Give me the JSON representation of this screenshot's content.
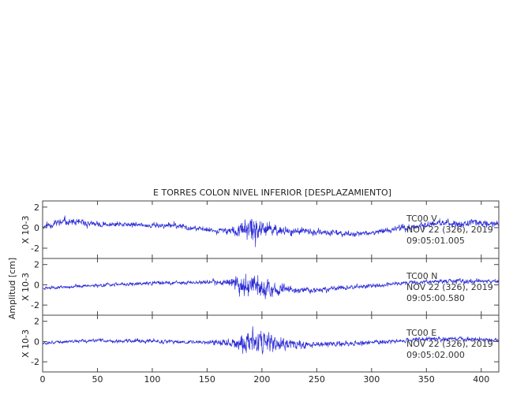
{
  "chart_data": {
    "type": "line",
    "title": "E TORRES COLON NIVEL INFERIOR [DESPLAZAMIENTO]",
    "ylabel": "Amplitud [cm]",
    "xlim": [
      0,
      416
    ],
    "x_ticks": [
      0,
      50,
      100,
      150,
      200,
      250,
      300,
      350,
      400
    ],
    "trace_color": "#2b2bd6",
    "panels": [
      {
        "name": "TC00 V",
        "scale_label": "X 10-3",
        "ylim": [
          -3,
          2.6
        ],
        "y_ticks": [
          2,
          0,
          -2
        ],
        "annotation": [
          "TC00   V",
          "NOV 22 (326), 2019",
          "09:05:01.005"
        ],
        "envelope": {
          "t": [
            0,
            20,
            60,
            120,
            150,
            172,
            180,
            190,
            200,
            215,
            230,
            260,
            300,
            330,
            360,
            400,
            416
          ],
          "a": [
            0.55,
            0.8,
            0.5,
            0.55,
            0.45,
            0.7,
            1.6,
            2.6,
            1.8,
            1.0,
            0.7,
            0.6,
            0.45,
            0.6,
            0.65,
            0.7,
            0.55
          ]
        },
        "trend": {
          "t": [
            0,
            20,
            50,
            120,
            160,
            200,
            240,
            280,
            300,
            330,
            360,
            400,
            416
          ],
          "v": [
            0.1,
            0.6,
            0.3,
            0.2,
            -0.3,
            -0.2,
            -0.4,
            -0.6,
            -0.5,
            0.0,
            0.4,
            0.5,
            0.3
          ]
        },
        "seed": 11
      },
      {
        "name": "TC00 N",
        "scale_label": "X 10-3",
        "ylim": [
          -3,
          2.6
        ],
        "y_ticks": [
          2,
          0,
          -2
        ],
        "annotation": [
          "TC00   N",
          "NOV 22 (326), 2019",
          "09:05:00.580"
        ],
        "envelope": {
          "t": [
            0,
            40,
            100,
            150,
            172,
            180,
            190,
            200,
            215,
            240,
            280,
            320,
            360,
            400,
            416
          ],
          "a": [
            0.3,
            0.35,
            0.35,
            0.4,
            0.8,
            2.0,
            2.5,
            1.9,
            1.1,
            0.6,
            0.45,
            0.4,
            0.45,
            0.45,
            0.4
          ]
        },
        "trend": {
          "t": [
            0,
            60,
            120,
            170,
            200,
            230,
            260,
            300,
            330,
            370,
            416
          ],
          "v": [
            -0.3,
            0.0,
            0.2,
            0.3,
            -0.4,
            -0.6,
            -0.4,
            -0.1,
            0.2,
            0.4,
            0.3
          ]
        },
        "seed": 23
      },
      {
        "name": "TC00 E",
        "scale_label": "X 10-3",
        "ylim": [
          -3,
          2.6
        ],
        "y_ticks": [
          2,
          0,
          -2
        ],
        "annotation": [
          "TC00   E",
          "NOV 22 (326), 2019",
          "09:05:02.000"
        ],
        "envelope": {
          "t": [
            0,
            40,
            100,
            150,
            172,
            180,
            190,
            200,
            215,
            240,
            280,
            330,
            370,
            416
          ],
          "a": [
            0.3,
            0.35,
            0.4,
            0.4,
            0.8,
            1.8,
            2.6,
            2.2,
            1.4,
            0.7,
            0.45,
            0.4,
            0.45,
            0.4
          ]
        },
        "trend": {
          "t": [
            0,
            50,
            110,
            160,
            200,
            240,
            280,
            320,
            350,
            400,
            416
          ],
          "v": [
            -0.1,
            0.1,
            0.0,
            -0.1,
            -0.2,
            -0.3,
            -0.2,
            0.0,
            0.3,
            0.2,
            0.1
          ]
        },
        "seed": 37
      }
    ]
  }
}
